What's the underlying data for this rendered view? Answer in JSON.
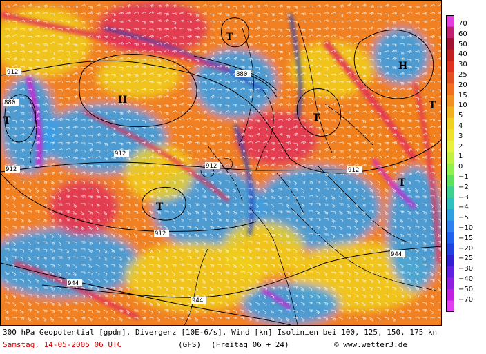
{
  "map": {
    "isolines": [
      {
        "label": "912"
      },
      {
        "label": "880"
      },
      {
        "label": "944"
      }
    ],
    "centers": [
      {
        "label": "T"
      },
      {
        "label": "H"
      }
    ],
    "colors": {
      "high": "#e0305a",
      "positive": "#f08020",
      "neutral": "#f0d020",
      "negative": "#30a0f0",
      "strong_negative": "#2040c0",
      "extreme": "#d020d0"
    }
  },
  "colorbar": {
    "ticks": [
      "70",
      "60",
      "50",
      "40",
      "30",
      "25",
      "20",
      "15",
      "10",
      "5",
      "4",
      "3",
      "2",
      "1",
      "0",
      "−1",
      "−2",
      "−3",
      "−4",
      "−5",
      "−10",
      "−15",
      "−20",
      "−25",
      "−30",
      "−40",
      "−50",
      "−70"
    ]
  },
  "caption": {
    "line1": "300 hPa Geopotential [gpdm], Divergenz [10E-6/s], Wind [kn] Isolinien bei 100, 125, 150, 175 kn",
    "date": "Samstag, 14-05-2005  06 UTC",
    "model": "(GFS)",
    "valid": "(Freitag 06 + 24)",
    "copyright": "© www.wetter3.de"
  }
}
